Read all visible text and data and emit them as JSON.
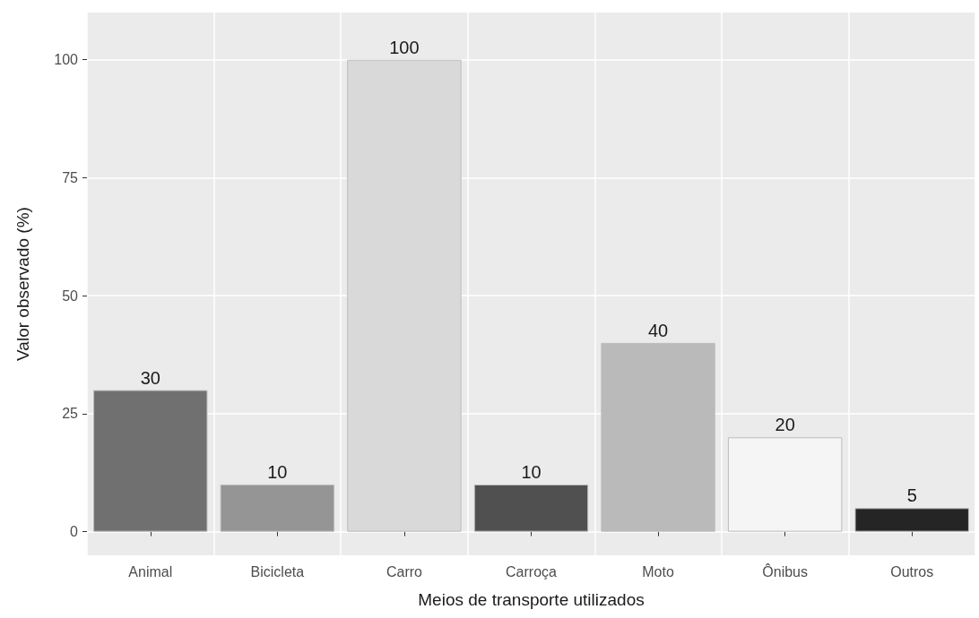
{
  "chart_data": {
    "type": "bar",
    "xlabel": "Meios de transporte utilizados",
    "ylabel": "Valor observado (%)",
    "categories": [
      "Animal",
      "Bicicleta",
      "Carro",
      "Carroça",
      "Moto",
      "Ônibus",
      "Outros"
    ],
    "values": [
      30,
      10,
      100,
      10,
      40,
      20,
      5
    ],
    "colors": [
      "#707070",
      "#959595",
      "#d9d9d9",
      "#505050",
      "#bababa",
      "#f5f5f5",
      "#252525"
    ],
    "ylim": [
      -5,
      110
    ],
    "yticks": [
      0,
      25,
      50,
      75,
      100
    ],
    "grid": true,
    "data_labels": true
  }
}
